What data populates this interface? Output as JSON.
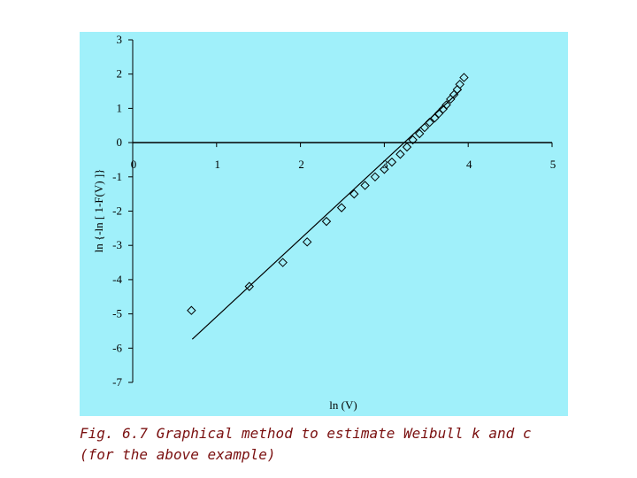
{
  "chart_data": {
    "type": "scatter",
    "xlabel": "ln (V)",
    "ylabel": "ln {-ln [ 1-F(V) ]}",
    "xlim": [
      0,
      5
    ],
    "ylim": [
      -7,
      3
    ],
    "xticks": [
      0,
      1,
      2,
      3,
      4,
      5
    ],
    "yticks": [
      -7,
      -6,
      -5,
      -4,
      -3,
      -2,
      -1,
      0,
      1,
      2,
      3
    ],
    "background": "#a0f0fa",
    "series": [
      {
        "type": "scatter",
        "color": "#000000",
        "x": [
          0.7,
          1.39,
          1.79,
          2.08,
          2.31,
          2.49,
          2.64,
          2.77,
          2.89,
          3.0,
          3.09,
          3.19,
          3.27,
          3.34,
          3.42,
          3.48,
          3.54,
          3.6,
          3.65,
          3.7,
          3.74,
          3.79,
          3.83,
          3.87,
          3.9,
          3.95
        ],
        "values": [
          -4.9,
          -4.2,
          -3.5,
          -2.9,
          -2.3,
          -1.9,
          -1.5,
          -1.25,
          -1.0,
          -0.78,
          -0.57,
          -0.34,
          -0.13,
          0.08,
          0.26,
          0.44,
          0.59,
          0.72,
          0.85,
          0.98,
          1.1,
          1.27,
          1.4,
          1.55,
          1.7,
          1.9
        ]
      },
      {
        "type": "line",
        "color": "#000000",
        "x": [
          0.71,
          3.92
        ],
        "values": [
          -5.74,
          1.55
        ]
      }
    ]
  },
  "caption": {
    "line1": "Fig. 6.7 Graphical method to estimate Weibull k and c",
    "line2": "(for the above example)"
  }
}
